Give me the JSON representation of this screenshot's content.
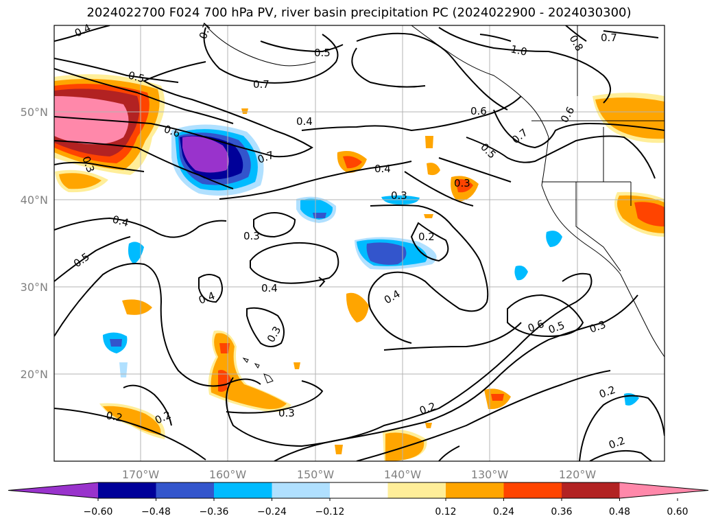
{
  "title": "2024022700 F024 700 hPa PV, river basin precipitation PC (2024022900 - 2024030300)",
  "map": {
    "lat_labels": [
      "50°N",
      "40°N",
      "30°N",
      "20°N"
    ],
    "lon_labels": [
      "170°W",
      "160°W",
      "150°W",
      "140°W",
      "130°W",
      "120°W"
    ]
  },
  "pv_contour_labels": [
    "0.4",
    "0.6",
    "0.5",
    "0.7",
    "1.0",
    "0.8",
    "0.7",
    "0.5",
    "0.7",
    "0.4",
    "0.6",
    "0.7",
    "0.6",
    "0.5",
    "0.7",
    "0.4",
    "0.3",
    "0.3",
    "0.3",
    "0.4",
    "0.5",
    "0.3",
    "0.2",
    "0.4",
    "0.4",
    "0.4",
    "0.3",
    "0.2",
    "0.2",
    "0.3",
    "0.2",
    "0.6",
    "0.5",
    "0.3",
    "0.2",
    "0.2"
  ],
  "colorbar": {
    "ticks": [
      "−0.60",
      "−0.48",
      "−0.36",
      "−0.24",
      "−0.12",
      "0.12",
      "0.24",
      "0.36",
      "0.48",
      "0.60"
    ],
    "colors": [
      "#9933cc",
      "#000099",
      "#3355cc",
      "#00bbff",
      "#b0e0ff",
      "#ffffff",
      "#ffee99",
      "#ffa500",
      "#ff4400",
      "#b22222",
      "#ff88aa"
    ]
  }
}
